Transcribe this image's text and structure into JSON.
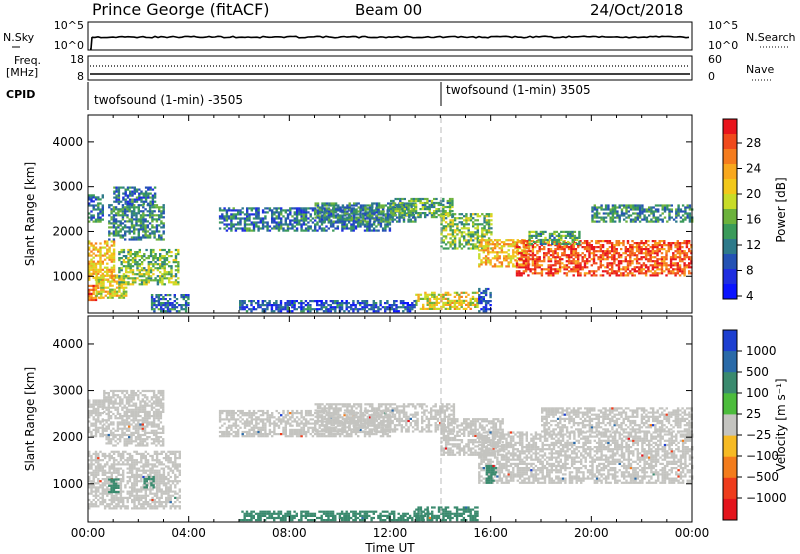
{
  "header": {
    "station": "Prince George (fitACF)",
    "beam": "Beam 00",
    "date": "24/Oct/2018"
  },
  "panels": {
    "nsky": {
      "left_label": "N.Sky",
      "left_ticks": [
        "10^5",
        "10^0"
      ],
      "right_label": "N.Search",
      "right_ticks": [
        "10^5",
        "10^0"
      ]
    },
    "freq": {
      "left_label_1": "Freq.",
      "left_label_2": "[MHz]",
      "left_ticks": [
        "18",
        "8"
      ],
      "right_label": "Nave",
      "right_ticks": [
        "60",
        "0"
      ]
    },
    "cpid": {
      "label": "CPID",
      "segments": [
        {
          "text": "twofsound (1-min) -3505",
          "start_hour": 0
        },
        {
          "text": "twofsound (1-min) 3505",
          "start_hour": 14
        }
      ]
    }
  },
  "power_colorbar": {
    "label": "Power [dB]",
    "ticks": [
      "28",
      "24",
      "20",
      "16",
      "12",
      "8",
      "4"
    ],
    "colors": [
      "#e8141c",
      "#f04a1c",
      "#f57c1e",
      "#f8a81e",
      "#f2c81a",
      "#c8dc28",
      "#6cb23c",
      "#3a9a5a",
      "#2e7a8a",
      "#2452b4",
      "#1f2ee0",
      "#0a14ff"
    ]
  },
  "velocity_colorbar": {
    "label": "Velocity [m s⁻¹]",
    "ticks": [
      "1000",
      "500",
      "100",
      "25",
      "−25",
      "−100",
      "−500",
      "−1000"
    ],
    "colors": [
      "#1d3fd0",
      "#2a6aa8",
      "#3a8a6e",
      "#4cbc3c",
      "#c4c4c0",
      "#f6ba24",
      "#f37c1c",
      "#ee3c1c",
      "#e4141c"
    ]
  },
  "x_axis": {
    "label": "Time UT",
    "ticks": [
      "00:00",
      "04:00",
      "08:00",
      "12:00",
      "16:00",
      "20:00",
      "00:00"
    ]
  },
  "chart_data": [
    {
      "type": "heatmap",
      "title": "Prince George (fitACF) Beam 00 24/Oct/2018",
      "xlabel": "Time UT",
      "ylabel": "Slant Range [km]",
      "zlabel": "Power [dB]",
      "xlim": [
        0,
        24
      ],
      "ylim": [
        180,
        4600
      ],
      "yticks": [
        1000,
        2000,
        3000,
        4000
      ],
      "zlim": [
        0,
        30
      ],
      "zticks": [
        4,
        8,
        12,
        16,
        20,
        24,
        28
      ],
      "bands": [
        {
          "t0": 0.0,
          "t1": 0.5,
          "r0": 450,
          "r1": 800,
          "power": 24
        },
        {
          "t0": 0.3,
          "t1": 1.5,
          "r0": 500,
          "r1": 1000,
          "power": 18
        },
        {
          "t0": 0.0,
          "t1": 1.0,
          "r0": 900,
          "r1": 1800,
          "power": 20
        },
        {
          "t0": 0.0,
          "t1": 0.6,
          "r0": 2200,
          "r1": 2800,
          "power": 8
        },
        {
          "t0": 0.8,
          "t1": 3.0,
          "r0": 1800,
          "r1": 2600,
          "power": 10
        },
        {
          "t0": 1.0,
          "t1": 2.7,
          "r0": 2600,
          "r1": 3000,
          "power": 8
        },
        {
          "t0": 1.2,
          "t1": 3.6,
          "r0": 800,
          "r1": 1600,
          "power": 14
        },
        {
          "t0": 2.5,
          "t1": 4.0,
          "r0": 200,
          "r1": 600,
          "power": 8
        },
        {
          "t0": 5.2,
          "t1": 12.0,
          "r0": 2000,
          "r1": 2500,
          "power": 8
        },
        {
          "t0": 9.0,
          "t1": 13.0,
          "r0": 2200,
          "r1": 2650,
          "power": 10
        },
        {
          "t0": 12.0,
          "t1": 14.5,
          "r0": 2300,
          "r1": 2750,
          "power": 12
        },
        {
          "t0": 14.0,
          "t1": 16.0,
          "r0": 1600,
          "r1": 2400,
          "power": 14
        },
        {
          "t0": 15.5,
          "t1": 17.5,
          "r0": 1200,
          "r1": 1800,
          "power": 20
        },
        {
          "t0": 17.0,
          "t1": 24.0,
          "r0": 1000,
          "r1": 1800,
          "power": 26
        },
        {
          "t0": 17.5,
          "t1": 19.5,
          "r0": 1700,
          "r1": 2000,
          "power": 12
        },
        {
          "t0": 20.0,
          "t1": 24.0,
          "r0": 2200,
          "r1": 2600,
          "power": 10
        },
        {
          "t0": 13.0,
          "t1": 15.5,
          "r0": 250,
          "r1": 650,
          "power": 18
        },
        {
          "t0": 6.0,
          "t1": 13.0,
          "r0": 200,
          "r1": 450,
          "power": 6
        },
        {
          "t0": 15.5,
          "t1": 16.0,
          "r0": 200,
          "r1": 700,
          "power": 6
        }
      ]
    },
    {
      "type": "heatmap",
      "xlabel": "Time UT",
      "ylabel": "Slant Range [km]",
      "zlabel": "Velocity [m s⁻¹]",
      "xlim": [
        0,
        24
      ],
      "ylim": [
        180,
        4600
      ],
      "yticks": [
        1000,
        2000,
        3000,
        4000
      ],
      "zticks": [
        1000,
        500,
        100,
        25,
        -25,
        -100,
        -500,
        -1000
      ],
      "bands": [
        {
          "t0": 0.0,
          "t1": 0.6,
          "r0": 2000,
          "r1": 2800,
          "velocity": 0
        },
        {
          "t0": 0.6,
          "t1": 3.0,
          "r0": 1800,
          "r1": 3000,
          "velocity": 0
        },
        {
          "t0": 0.0,
          "t1": 3.6,
          "r0": 450,
          "r1": 1700,
          "velocity": 0
        },
        {
          "t0": 5.2,
          "t1": 12.0,
          "r0": 2000,
          "r1": 2550,
          "velocity": 0
        },
        {
          "t0": 9.0,
          "t1": 14.5,
          "r0": 2100,
          "r1": 2700,
          "velocity": 0
        },
        {
          "t0": 14.0,
          "t1": 16.5,
          "r0": 1600,
          "r1": 2400,
          "velocity": 0
        },
        {
          "t0": 15.5,
          "t1": 24.0,
          "r0": 1000,
          "r1": 2100,
          "velocity": 0
        },
        {
          "t0": 18.0,
          "t1": 24.0,
          "r0": 2100,
          "r1": 2600,
          "velocity": 0
        },
        {
          "t0": 0.8,
          "t1": 1.2,
          "r0": 800,
          "r1": 1100,
          "velocity": 150
        },
        {
          "t0": 2.2,
          "t1": 2.6,
          "r0": 900,
          "r1": 1150,
          "velocity": 150
        },
        {
          "t0": 15.8,
          "t1": 16.2,
          "r0": 1000,
          "r1": 1400,
          "velocity": 150
        },
        {
          "t0": 6.0,
          "t1": 13.5,
          "r0": 200,
          "r1": 400,
          "velocity": 150
        },
        {
          "t0": 13.0,
          "t1": 15.5,
          "r0": 200,
          "r1": 500,
          "velocity": 150
        }
      ]
    }
  ]
}
